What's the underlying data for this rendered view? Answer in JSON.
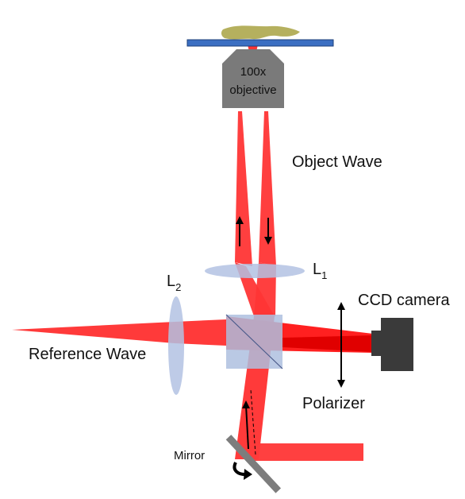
{
  "labels": {
    "objective": [
      "100x",
      "objective"
    ],
    "object_wave": "Object Wave",
    "l1": {
      "main": "L",
      "sub": "1"
    },
    "l2": {
      "main": "L",
      "sub": "2"
    },
    "ccd_camera": "CCD camera",
    "reference_wave": "Reference Wave",
    "polarizer": "Polarizer",
    "mirror": "Mirror"
  },
  "colors": {
    "beam": "#ff2b2b",
    "beam_dark": "#e00000",
    "lens": "#b3c2e3",
    "slide": "#3b6fc2",
    "sample": "#b5b05e",
    "objective": "#7a7a7a",
    "camera": "#3a3a3a",
    "mirror": "#7d7d7d",
    "beamsplitter": "#aebfdf"
  }
}
